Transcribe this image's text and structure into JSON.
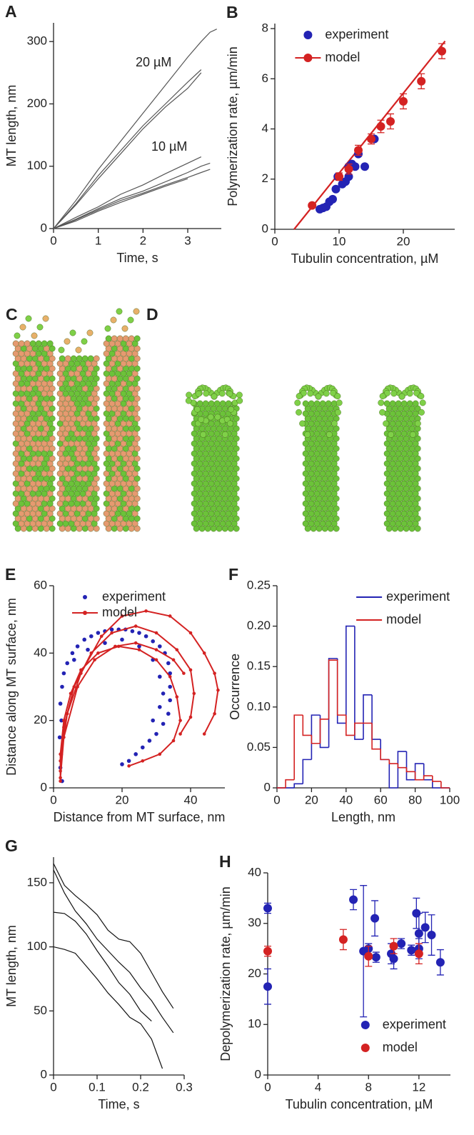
{
  "chart_data": [
    {
      "type": "line",
      "panel_label": "A",
      "xlabel": "Time, s",
      "ylabel": "MT length, nm",
      "xlim": [
        0,
        3.75
      ],
      "ylim": [
        0,
        330
      ],
      "xticks": [
        0,
        1,
        2,
        3
      ],
      "yticks": [
        0,
        100,
        200,
        300
      ],
      "annotations": [
        "20 µM",
        "10 µM"
      ],
      "x": [
        0,
        0.5,
        1,
        1.5,
        2,
        2.5,
        3,
        3.3,
        3.5,
        3.65
      ],
      "series": [
        {
          "color": "#555555",
          "values": [
            0,
            45,
            95,
            140,
            185,
            230,
            275,
            300,
            315,
            320
          ]
        },
        {
          "color": "#555555",
          "values": [
            0,
            40,
            85,
            125,
            165,
            200,
            235,
            255,
            null,
            null
          ]
        },
        {
          "color": "#555555",
          "values": [
            0,
            38,
            80,
            120,
            160,
            195,
            225,
            250,
            null,
            null
          ]
        },
        {
          "color": "#555555",
          "values": [
            0,
            18,
            35,
            55,
            70,
            88,
            105,
            115,
            null,
            null
          ]
        },
        {
          "color": "#555555",
          "values": [
            0,
            15,
            32,
            48,
            60,
            75,
            90,
            100,
            105,
            null
          ]
        },
        {
          "color": "#555555",
          "values": [
            0,
            14,
            30,
            45,
            57,
            70,
            82,
            90,
            95,
            null
          ]
        },
        {
          "color": "#555555",
          "values": [
            0,
            12,
            28,
            42,
            55,
            68,
            80,
            null,
            null,
            null
          ]
        }
      ]
    },
    {
      "type": "scatter",
      "panel_label": "B",
      "xlabel": "Tubulin concentration, µM",
      "ylabel": "Polymerization rate, µm/min",
      "xlim": [
        0,
        28
      ],
      "ylim": [
        0,
        8.2
      ],
      "xticks": [
        0,
        10,
        20
      ],
      "yticks": [
        0,
        2,
        4,
        6,
        8
      ],
      "legend": "upper left",
      "fit": {
        "x": [
          3,
          26.5
        ],
        "y": [
          0,
          7.5
        ]
      },
      "series": [
        {
          "name": "experiment",
          "color": "#2323b4",
          "x": [
            7,
            7.5,
            8,
            8.5,
            9,
            9.5,
            9.8,
            10.5,
            11,
            11.5,
            11.5,
            12,
            12.5,
            13,
            14,
            15.5
          ],
          "values": [
            0.8,
            0.85,
            0.9,
            1.1,
            1.2,
            1.6,
            2.1,
            1.8,
            1.9,
            2.1,
            2.5,
            2.6,
            2.5,
            3.0,
            2.5,
            3.6
          ]
        },
        {
          "name": "model",
          "color": "#d42222",
          "line": false,
          "x": [
            5.8,
            10,
            11.5,
            13,
            15,
            16.5,
            18,
            20,
            22.8,
            26
          ],
          "values": [
            0.95,
            2.1,
            2.4,
            3.15,
            3.6,
            4.1,
            4.3,
            5.1,
            5.9,
            7.1
          ],
          "errors": [
            0.05,
            0.15,
            0.2,
            0.2,
            0.2,
            0.25,
            0.3,
            0.3,
            0.3,
            0.3
          ]
        }
      ]
    },
    {
      "type": "scatter",
      "panel_label": "E",
      "xlabel": "Distance from MT surface, nm",
      "ylabel": "Distance along MT surface, nm",
      "xlim": [
        0,
        50
      ],
      "ylim": [
        0,
        60
      ],
      "xticks": [
        0,
        20,
        40
      ],
      "yticks": [
        0,
        20,
        40,
        60
      ],
      "legend": "upper left",
      "series": [
        {
          "name": "experiment",
          "color": "#2323b4",
          "x": [
            2.5,
            2,
            2.2,
            1.8,
            2.3,
            2,
            2.5,
            3,
            4,
            5.5,
            7,
            9,
            11,
            13,
            15,
            17,
            19,
            21,
            23,
            25,
            27,
            29,
            31,
            32.5,
            33.5,
            34,
            34,
            34,
            33.5,
            32,
            30,
            28,
            26,
            24,
            22,
            20,
            6,
            10,
            15,
            20,
            25,
            29,
            31,
            32,
            31,
            29
          ],
          "values": [
            2,
            6,
            10,
            15,
            20,
            25,
            30,
            34,
            37,
            40,
            42,
            44,
            45,
            46,
            46.5,
            47,
            47,
            47,
            46.5,
            46,
            45,
            43.5,
            42,
            40,
            37,
            34,
            30,
            26,
            22,
            19,
            16,
            14,
            12,
            10,
            8,
            7,
            38,
            41,
            43,
            44,
            42,
            38,
            33,
            28,
            24,
            20
          ]
        },
        {
          "name": "model",
          "color": "#d42222",
          "line": true,
          "x": [
            2,
            2,
            3,
            5,
            8,
            13,
            19,
            25,
            30,
            34,
            36,
            37,
            35,
            31,
            26,
            22,
            null,
            2,
            3,
            6,
            11,
            17,
            24,
            30,
            36,
            40,
            41,
            40,
            37,
            null,
            2,
            4,
            8,
            14,
            20,
            27,
            34,
            40,
            44,
            47,
            48,
            47,
            44,
            null,
            2,
            3,
            7,
            12,
            18,
            24,
            30,
            35,
            38
          ],
          "values": [
            2,
            10,
            20,
            28,
            35,
            40,
            42,
            41,
            38,
            33,
            27,
            20,
            14,
            10,
            8,
            6.5,
            null,
            5,
            18,
            30,
            40,
            46,
            48,
            46,
            41,
            35,
            28,
            21,
            16,
            null,
            8,
            22,
            34,
            45,
            51,
            52.5,
            51,
            46,
            40,
            34,
            29,
            22,
            16,
            null,
            3,
            15,
            30,
            38,
            42,
            43,
            41,
            38,
            34
          ]
        }
      ]
    },
    {
      "type": "histogram",
      "panel_label": "F",
      "xlabel": "Length, nm",
      "ylabel": "Occurrence",
      "xlim": [
        0,
        100
      ],
      "ylim": [
        0,
        0.25
      ],
      "xticks": [
        0,
        20,
        40,
        60,
        80,
        100
      ],
      "yticks": [
        0,
        0.05,
        {
          "value": 0.1,
          "label": "0.10"
        },
        0.15,
        {
          "value": 0.2,
          "label": "0.20"
        },
        0.25
      ],
      "legend": "upper right",
      "bins": [
        0,
        5,
        10,
        15,
        20,
        25,
        30,
        35,
        40,
        45,
        50,
        55,
        60,
        65,
        70,
        75,
        80,
        85,
        90,
        95,
        100
      ],
      "series": [
        {
          "name": "experiment",
          "color": "#2323b4",
          "values": [
            0,
            0,
            0.005,
            0.035,
            0.09,
            0.05,
            0.16,
            0.08,
            0.2,
            0.06,
            0.115,
            0.06,
            0.035,
            0,
            0.045,
            0.01,
            0.03,
            0.01,
            0,
            0
          ]
        },
        {
          "name": "model",
          "color": "#d42222",
          "values": [
            0,
            0.01,
            0.09,
            0.065,
            0.055,
            0.085,
            0.158,
            0.09,
            0.065,
            0.08,
            0.08,
            0.048,
            0.035,
            0.03,
            0.025,
            0.02,
            0.01,
            0.015,
            0.008,
            0
          ]
        }
      ]
    },
    {
      "type": "line",
      "panel_label": "G",
      "xlabel": "Time, s",
      "ylabel": "MT length, nm",
      "xlim": [
        0,
        0.3
      ],
      "ylim": [
        0,
        170
      ],
      "xticks": [
        0,
        0.1,
        0.2,
        0.3
      ],
      "yticks": [
        0,
        50,
        100,
        150
      ],
      "x": [
        0,
        0.025,
        0.05,
        0.075,
        0.1,
        0.125,
        0.15,
        0.175,
        0.2,
        0.225,
        0.25,
        0.275
      ],
      "series": [
        {
          "color": "#111111",
          "values": [
            165,
            148,
            140,
            133,
            125,
            113,
            106,
            104,
            95,
            80,
            65,
            52
          ]
        },
        {
          "color": "#111111",
          "values": [
            160,
            142,
            128,
            118,
            106,
            97,
            88,
            80,
            68,
            58,
            45,
            33
          ]
        },
        {
          "color": "#111111",
          "values": [
            127,
            126,
            120,
            110,
            97,
            85,
            72,
            63,
            50,
            42,
            null,
            null
          ]
        },
        {
          "color": "#111111",
          "values": [
            100,
            98,
            95,
            85,
            75,
            64,
            55,
            45,
            40,
            28,
            5,
            null
          ]
        }
      ]
    },
    {
      "type": "scatter",
      "panel_label": "H",
      "xlabel": "Tubulin concentration, µM",
      "ylabel": "Depolymerization rate, µm/min",
      "xlim": [
        0,
        14.5
      ],
      "ylim": [
        0,
        40
      ],
      "xticks": [
        0,
        4,
        8,
        12
      ],
      "yticks": [
        0,
        10,
        20,
        30,
        40
      ],
      "legend": "lower right",
      "series": [
        {
          "name": "experiment",
          "color": "#2323b4",
          "x": [
            0,
            0,
            6.8,
            7.6,
            8,
            8.5,
            8.6,
            9.8,
            10,
            10.6,
            11.4,
            11.8,
            12,
            12,
            12.5,
            13,
            13.7
          ],
          "values": [
            33,
            17.5,
            34.7,
            24.5,
            25,
            31,
            23.3,
            24,
            23,
            26,
            24.7,
            32,
            28,
            25,
            29.2,
            27.7,
            22.3
          ],
          "errors": [
            1,
            3.5,
            2,
            13,
            1,
            3.5,
            1,
            2,
            2,
            1,
            1,
            3,
            4,
            2,
            3,
            4,
            2.5
          ]
        },
        {
          "name": "model",
          "color": "#d42222",
          "x": [
            0,
            6,
            8,
            10,
            12
          ],
          "values": [
            24.5,
            26.8,
            23.5,
            25.5,
            24
          ],
          "errors": [
            1,
            2,
            2,
            1.5,
            2
          ]
        }
      ]
    }
  ],
  "images": [
    {
      "label": "C"
    },
    {
      "label": "D"
    }
  ]
}
